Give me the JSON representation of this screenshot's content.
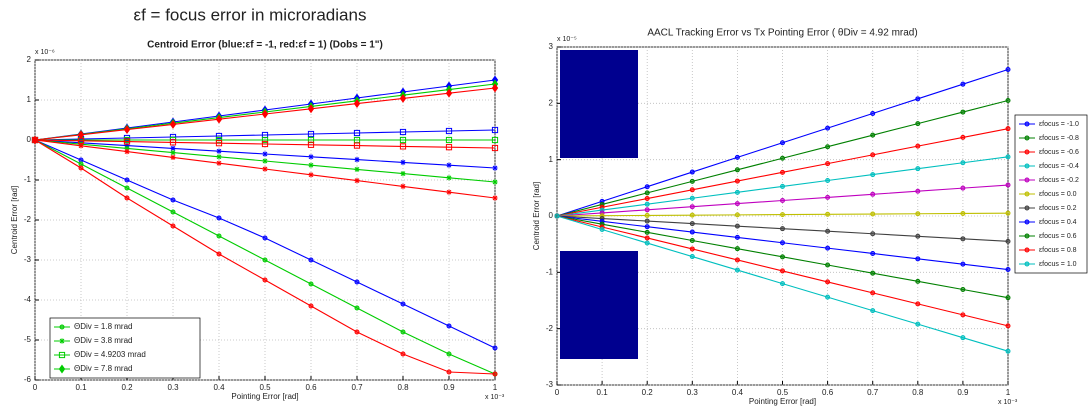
{
  "heading": "εf = focus error in microradians",
  "chart_data": [
    {
      "type": "line",
      "title": "Centroid Error (blue:εf = -1, red:εf = 1) (Dobs = 1\")",
      "x_label": "Pointing Error [rad]",
      "y_label": "Centroid Error [rad]",
      "x_multiplier": "x 10⁻³",
      "y_multiplier": "x 10⁻⁶",
      "x": [
        0,
        0.1,
        0.2,
        0.3,
        0.4,
        0.5,
        0.6,
        0.7,
        0.8,
        0.9,
        1
      ],
      "xlim": [
        0,
        1
      ],
      "xticks": [
        0,
        0.1,
        0.2,
        0.3,
        0.4,
        0.5,
        0.6,
        0.7,
        0.8,
        0.9,
        1
      ],
      "ylim": [
        -6,
        2
      ],
      "yticks": [
        -6,
        -5,
        -4,
        -3,
        -2,
        -1,
        0,
        1,
        2
      ],
      "grid": true,
      "legend": "lower left",
      "series": [
        {
          "color": "#0000ff",
          "marker": "circle",
          "values": [
            0,
            -0.5,
            -1.0,
            -1.5,
            -1.95,
            -2.45,
            -3.0,
            -3.55,
            -4.1,
            -4.65,
            -5.2
          ]
        },
        {
          "name": "ΘDiv = 1.8 mrad",
          "color": "#00cc00",
          "marker": "circle",
          "values": [
            0,
            -0.6,
            -1.2,
            -1.8,
            -2.4,
            -3.0,
            -3.6,
            -4.2,
            -4.8,
            -5.35,
            -5.85
          ]
        },
        {
          "color": "#ff0000",
          "marker": "circle",
          "values": [
            0,
            -0.7,
            -1.45,
            -2.15,
            -2.85,
            -3.5,
            -4.15,
            -4.8,
            -5.35,
            -5.8,
            -5.85
          ]
        },
        {
          "color": "#0000ff",
          "marker": "star",
          "values": [
            0,
            -0.07,
            -0.14,
            -0.21,
            -0.28,
            -0.35,
            -0.42,
            -0.49,
            -0.56,
            -0.63,
            -0.7
          ]
        },
        {
          "name": "ΘDiv = 3.8 mrad",
          "color": "#00cc00",
          "marker": "star",
          "values": [
            0,
            -0.105,
            -0.21,
            -0.315,
            -0.42,
            -0.525,
            -0.63,
            -0.735,
            -0.84,
            -0.945,
            -1.05
          ]
        },
        {
          "color": "#ff0000",
          "marker": "star",
          "values": [
            0,
            -0.145,
            -0.29,
            -0.435,
            -0.58,
            -0.725,
            -0.87,
            -1.015,
            -1.16,
            -1.305,
            -1.45
          ]
        },
        {
          "color": "#0000ff",
          "marker": "square",
          "values": [
            0,
            0.025,
            0.05,
            0.075,
            0.1,
            0.125,
            0.15,
            0.175,
            0.2,
            0.225,
            0.25
          ]
        },
        {
          "name": "ΘDiv = 4.9203 mrad",
          "color": "#00cc00",
          "marker": "square",
          "values": [
            0,
            0,
            0,
            0,
            0,
            0,
            0,
            0,
            0,
            0,
            0
          ]
        },
        {
          "color": "#ff0000",
          "marker": "square",
          "values": [
            0,
            -0.02,
            -0.04,
            -0.06,
            -0.08,
            -0.1,
            -0.12,
            -0.14,
            -0.16,
            -0.18,
            -0.2
          ]
        },
        {
          "color": "#0000ff",
          "marker": "diamond",
          "values": [
            0,
            0.15,
            0.3,
            0.45,
            0.6,
            0.75,
            0.9,
            1.05,
            1.2,
            1.35,
            1.5
          ]
        },
        {
          "name": "ΘDiv = 7.8 mrad",
          "color": "#00cc00",
          "marker": "diamond",
          "values": [
            0,
            0.14,
            0.28,
            0.42,
            0.56,
            0.7,
            0.84,
            0.98,
            1.12,
            1.26,
            1.4
          ]
        },
        {
          "color": "#ff0000",
          "marker": "diamond",
          "values": [
            0,
            0.13,
            0.26,
            0.39,
            0.52,
            0.65,
            0.78,
            0.91,
            1.04,
            1.17,
            1.3
          ]
        }
      ]
    },
    {
      "type": "line",
      "title": "AACL Tracking Error vs Tx Pointing Error ( θDiv = 4.92 mrad)",
      "x_label": "Pointing Error [rad]",
      "y_label": "Centroid Error [rad]",
      "x_multiplier": "x 10⁻³",
      "y_multiplier": "x 10⁻⁵",
      "x": [
        0,
        0.1,
        0.2,
        0.3,
        0.4,
        0.5,
        0.6,
        0.7,
        0.8,
        0.9,
        1
      ],
      "xlim": [
        0,
        1
      ],
      "xticks": [
        0,
        0.1,
        0.2,
        0.3,
        0.4,
        0.5,
        0.6,
        0.7,
        0.8,
        0.9,
        1
      ],
      "ylim": [
        -3,
        3
      ],
      "yticks": [
        -3,
        -2,
        -1,
        0,
        1,
        2,
        3
      ],
      "grid": true,
      "legend": "right",
      "series": [
        {
          "name": "εfocus = -1.0",
          "color": "#0000ff",
          "marker": "circle",
          "values": [
            0,
            0.26,
            0.52,
            0.78,
            1.04,
            1.3,
            1.56,
            1.82,
            2.08,
            2.34,
            2.6
          ]
        },
        {
          "name": "εfocus = -0.8",
          "color": "#008000",
          "marker": "circle",
          "values": [
            0,
            0.205,
            0.41,
            0.615,
            0.82,
            1.025,
            1.23,
            1.435,
            1.64,
            1.845,
            2.05
          ]
        },
        {
          "name": "εfocus = -0.6",
          "color": "#ff0000",
          "marker": "circle",
          "values": [
            0,
            0.155,
            0.31,
            0.465,
            0.62,
            0.775,
            0.93,
            1.085,
            1.24,
            1.395,
            1.55
          ]
        },
        {
          "name": "εfocus = -0.4",
          "color": "#00bfbf",
          "marker": "circle",
          "values": [
            0,
            0.105,
            0.21,
            0.315,
            0.42,
            0.525,
            0.63,
            0.735,
            0.84,
            0.945,
            1.05
          ]
        },
        {
          "name": "εfocus = -0.2",
          "color": "#bf00bf",
          "marker": "circle",
          "values": [
            0,
            0.055,
            0.11,
            0.165,
            0.22,
            0.275,
            0.33,
            0.385,
            0.44,
            0.495,
            0.55
          ]
        },
        {
          "name": "εfocus = 0.0",
          "color": "#bfbf00",
          "marker": "circle",
          "values": [
            0,
            0.005,
            0.01,
            0.015,
            0.02,
            0.025,
            0.03,
            0.035,
            0.04,
            0.045,
            0.05
          ]
        },
        {
          "name": "εfocus = 0.2",
          "color": "#404040",
          "marker": "circle",
          "values": [
            0,
            -0.045,
            -0.09,
            -0.135,
            -0.18,
            -0.225,
            -0.27,
            -0.315,
            -0.36,
            -0.405,
            -0.45
          ]
        },
        {
          "name": "εfocus = 0.4",
          "color": "#0000ff",
          "marker": "circle",
          "values": [
            0,
            -0.095,
            -0.19,
            -0.285,
            -0.38,
            -0.475,
            -0.57,
            -0.665,
            -0.76,
            -0.855,
            -0.95
          ]
        },
        {
          "name": "εfocus = 0.6",
          "color": "#008000",
          "marker": "circle",
          "values": [
            0,
            -0.145,
            -0.29,
            -0.435,
            -0.58,
            -0.725,
            -0.87,
            -1.015,
            -1.16,
            -1.305,
            -1.45
          ]
        },
        {
          "name": "εfocus = 0.8",
          "color": "#ff0000",
          "marker": "circle",
          "values": [
            0,
            -0.195,
            -0.39,
            -0.585,
            -0.78,
            -0.975,
            -1.17,
            -1.365,
            -1.56,
            -1.755,
            -1.95
          ]
        },
        {
          "name": "εfocus = 1.0",
          "color": "#00bfbf",
          "marker": "circle",
          "values": [
            0,
            -0.24,
            -0.48,
            -0.72,
            -0.96,
            -1.2,
            -1.44,
            -1.68,
            -1.92,
            -2.16,
            -2.4
          ]
        }
      ]
    }
  ]
}
